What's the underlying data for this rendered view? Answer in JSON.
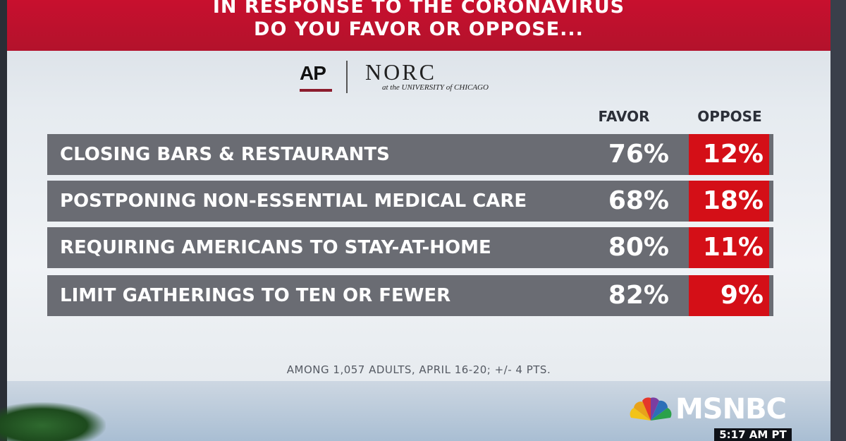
{
  "chart_data": {
    "type": "table",
    "title": "IN RESPONSE TO THE CORONAVIRUS DO YOU FAVOR OR OPPOSE...",
    "title_lines": [
      "IN RESPONSE TO THE CORONAVIRUS",
      "DO YOU FAVOR OR OPPOSE..."
    ],
    "columns": [
      "FAVOR",
      "OPPOSE"
    ],
    "rows": [
      {
        "label": "CLOSING BARS & RESTAURANTS",
        "favor": 76,
        "oppose": 12,
        "favor_text": "76%",
        "oppose_text": "12%"
      },
      {
        "label": "POSTPONING NON-ESSENTIAL MEDICAL CARE",
        "favor": 68,
        "oppose": 18,
        "favor_text": "68%",
        "oppose_text": "18%"
      },
      {
        "label": "REQUIRING AMERICANS TO STAY-AT-HOME",
        "favor": 80,
        "oppose": 11,
        "favor_text": "80%",
        "oppose_text": "11%"
      },
      {
        "label": "LIMIT GATHERINGS TO TEN OR FEWER",
        "favor": 82,
        "oppose": 9,
        "favor_text": "82%",
        "oppose_text": "9%"
      }
    ],
    "footnote": "AMONG 1,057 ADULTS, APRIL 16-20; +/- 4 PTS."
  },
  "logos": {
    "ap": "AP",
    "norc": "NORC",
    "norc_sub": "at the UNIVERSITY of CHICAGO"
  },
  "network": {
    "name": "MSNBC",
    "time": "5:17 AM PT"
  },
  "colors": {
    "header_red": "#c8102e",
    "oppose_red": "#d40f17",
    "row_gray": "#6a6c73"
  }
}
